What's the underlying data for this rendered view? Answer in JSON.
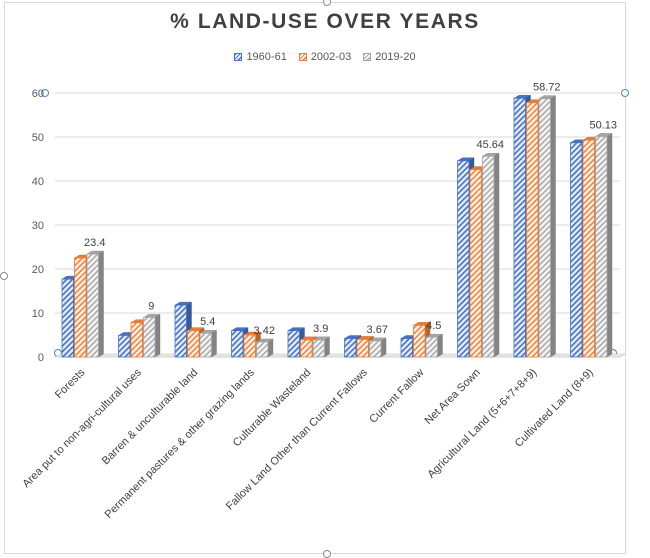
{
  "chart_data": {
    "type": "bar",
    "title": "% LAND-USE OVER YEARS",
    "categories": [
      "Forests",
      "Area put to non-agri-cultural uses",
      "Barren & unculturable land",
      "Permanent pastures & other grazing lands",
      "Culturable Wasteland",
      "Fallow Land Other than Current Fallows",
      "Current Fallow",
      "Net Area Sown",
      "Agricultural Land (5+6+7+8+9)",
      "Cultivated Land (8+9)"
    ],
    "series": [
      {
        "name": "1960-61",
        "color": "#4472c4",
        "pattern": "blue-hatch",
        "values": [
          17.7,
          4.9,
          11.8,
          6.0,
          6.0,
          4.2,
          4.2,
          44.6,
          58.8,
          48.7
        ]
      },
      {
        "name": "2002-03",
        "color": "#ed7d31",
        "pattern": "orange-hatch",
        "values": [
          22.5,
          7.8,
          6.0,
          5.0,
          3.9,
          4.0,
          7.2,
          42.6,
          57.8,
          49.3
        ]
      },
      {
        "name": "2019-20",
        "color": "#a5a5a5",
        "pattern": "gray-hatch",
        "values": [
          23.4,
          9,
          5.4,
          3.42,
          3.9,
          3.67,
          4.5,
          45.64,
          58.72,
          50.13
        ]
      }
    ],
    "data_labels": [
      "23.4",
      "9",
      "5.4",
      "3.42",
      "3.9",
      "3.67",
      "4.5",
      "45.64",
      "58.72",
      "50.13"
    ],
    "y_ticks": [
      "0",
      "10",
      "20",
      "30",
      "40",
      "50",
      "60"
    ],
    "ylim": [
      0,
      60
    ],
    "grid": true,
    "legend_position": "top-center",
    "xlabel": "",
    "ylabel": ""
  }
}
